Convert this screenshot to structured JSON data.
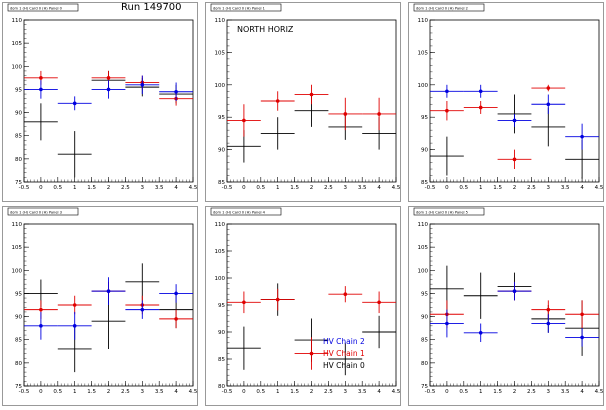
{
  "run_label": "Run 149700",
  "series_colors": {
    "black": "#000000",
    "red": "#e00000",
    "blue": "#0000e0"
  },
  "chart_data": [
    {
      "type": "scatter",
      "panel_title": "dom 1 (H) Card 0 (H) Panel 0",
      "xlim": [
        -0.5,
        4.5
      ],
      "ylim": [
        75,
        110
      ],
      "xticks": [
        "-0.5",
        "0",
        "0.5",
        "1",
        "1.5",
        "2",
        "2.5",
        "3",
        "3.5",
        "4",
        "4.5"
      ],
      "yticks": [
        "75",
        "80",
        "85",
        "90",
        "95",
        "100",
        "105",
        "110"
      ],
      "overlay_text": "",
      "legend": [],
      "series": [
        {
          "color": "black",
          "x": [
            0,
            1,
            2,
            3,
            4
          ],
          "y": [
            88,
            81,
            97,
            95.5,
            94
          ],
          "ex": [
            0.5,
            0.5,
            0.5,
            0.5,
            0.5
          ],
          "ey": [
            4,
            5,
            2,
            2,
            2
          ]
        },
        {
          "color": "red",
          "x": [
            0,
            2,
            3,
            4
          ],
          "y": [
            97.5,
            97.5,
            96.5,
            93
          ],
          "ex": [
            0.5,
            0.5,
            0.5,
            0.5
          ],
          "ey": [
            1.5,
            1.5,
            1.5,
            1.5
          ]
        },
        {
          "color": "blue",
          "x": [
            0,
            1,
            2,
            3,
            4
          ],
          "y": [
            95,
            92,
            95,
            96,
            94.5
          ],
          "ex": [
            0.5,
            0.5,
            0.5,
            0.5,
            0.5
          ],
          "ey": [
            2,
            1.5,
            2,
            2,
            2
          ]
        }
      ]
    },
    {
      "type": "scatter",
      "panel_title": "dom 1 (H) Card 0 (H) Panel 1",
      "xlim": [
        -0.5,
        4.5
      ],
      "ylim": [
        85,
        110
      ],
      "xticks": [
        "-0.5",
        "0",
        "0.5",
        "1",
        "1.5",
        "2",
        "2.5",
        "3",
        "3.5",
        "4",
        "4.5"
      ],
      "yticks": [
        "85",
        "90",
        "95",
        "100",
        "105",
        "110"
      ],
      "overlay_text": "NORTH HORIZ",
      "legend": [],
      "series": [
        {
          "color": "black",
          "x": [
            0,
            1,
            2,
            3,
            4
          ],
          "y": [
            90.5,
            92.5,
            96,
            93.5,
            92.5
          ],
          "ex": [
            0.5,
            0.5,
            0.5,
            0.5,
            0.5
          ],
          "ey": [
            2.5,
            2.5,
            2.5,
            2,
            2.5
          ]
        },
        {
          "color": "red",
          "x": [
            0,
            1,
            2,
            3,
            4
          ],
          "y": [
            94.5,
            97.5,
            98.5,
            95.5,
            95.5
          ],
          "ex": [
            0.5,
            0.5,
            0.5,
            0.5,
            0.5
          ],
          "ey": [
            2.5,
            1.5,
            1.5,
            2.5,
            2.5
          ]
        }
      ]
    },
    {
      "type": "scatter",
      "panel_title": "dom 1 (H) Card 0 (H) Panel 2",
      "xlim": [
        -0.5,
        4.5
      ],
      "ylim": [
        85,
        110
      ],
      "xticks": [
        "-0.5",
        "0",
        "0.5",
        "1",
        "1.5",
        "2",
        "2.5",
        "3",
        "3.5",
        "4",
        "4.5"
      ],
      "yticks": [
        "85",
        "90",
        "95",
        "100",
        "105",
        "110"
      ],
      "overlay_text": "",
      "legend": [],
      "series": [
        {
          "color": "black",
          "x": [
            0,
            2,
            3,
            4
          ],
          "y": [
            89,
            95.5,
            93.5,
            88.5
          ],
          "ex": [
            0.5,
            0.5,
            0.5,
            0.5
          ],
          "ey": [
            3,
            3,
            3,
            3
          ]
        },
        {
          "color": "red",
          "x": [
            0,
            1,
            2,
            3
          ],
          "y": [
            96,
            96.5,
            88.5,
            99.5
          ],
          "ex": [
            0.5,
            0.5,
            0.5,
            0.5
          ],
          "ey": [
            1.5,
            1,
            1.5,
            0.5
          ]
        },
        {
          "color": "blue",
          "x": [
            0,
            1,
            2,
            3,
            4
          ],
          "y": [
            99,
            99,
            94.5,
            97,
            92
          ],
          "ex": [
            0.5,
            0.5,
            0.5,
            0.5,
            0.5
          ],
          "ey": [
            1,
            1,
            1,
            1.5,
            2
          ]
        }
      ]
    },
    {
      "type": "scatter",
      "panel_title": "dom 1 (H) Card 0 (H) Panel 3",
      "xlim": [
        -0.5,
        4.5
      ],
      "ylim": [
        75,
        110
      ],
      "xticks": [
        "-0.5",
        "0",
        "0.5",
        "1",
        "1.5",
        "2",
        "2.5",
        "3",
        "3.5",
        "4",
        "4.5"
      ],
      "yticks": [
        "75",
        "80",
        "85",
        "90",
        "95",
        "100",
        "105",
        "110"
      ],
      "overlay_text": "",
      "legend": [],
      "series": [
        {
          "color": "black",
          "x": [
            0,
            1,
            2,
            3,
            4
          ],
          "y": [
            95,
            83,
            89,
            97.5,
            91.5
          ],
          "ex": [
            0.5,
            0.5,
            0.5,
            0.5,
            0.5
          ],
          "ey": [
            3,
            5,
            6,
            4,
            4
          ]
        },
        {
          "color": "red",
          "x": [
            0,
            1,
            2,
            3,
            4
          ],
          "y": [
            91.5,
            92.5,
            95.5,
            92.5,
            89.5
          ],
          "ex": [
            0.5,
            0.5,
            0.5,
            0.5,
            0.5
          ],
          "ey": [
            2,
            2,
            2,
            2,
            2
          ]
        },
        {
          "color": "blue",
          "x": [
            0,
            1,
            2,
            3,
            4
          ],
          "y": [
            88,
            88,
            95.5,
            91.5,
            95
          ],
          "ex": [
            0.5,
            0.5,
            0.5,
            0.5,
            0.5
          ],
          "ey": [
            3,
            3,
            3,
            2,
            2
          ]
        }
      ]
    },
    {
      "type": "scatter",
      "panel_title": "dom 1 (H) Card 0 (H) Panel 4",
      "xlim": [
        -0.5,
        4.5
      ],
      "ylim": [
        80,
        110
      ],
      "xticks": [
        "-0.5",
        "0",
        "0.5",
        "1",
        "1.5",
        "2",
        "2.5",
        "3",
        "3.5",
        "4",
        "4.5"
      ],
      "yticks": [
        "80",
        "85",
        "90",
        "95",
        "100",
        "105",
        "110"
      ],
      "overlay_text": "",
      "legend": [
        {
          "label": "HV Chain 2",
          "color": "blue"
        },
        {
          "label": "HV Chain 1",
          "color": "red"
        },
        {
          "label": "HV Chain 0",
          "color": "black"
        }
      ],
      "series": [
        {
          "color": "black",
          "x": [
            0,
            1,
            2,
            3,
            4
          ],
          "y": [
            87,
            96,
            88.5,
            85,
            90
          ],
          "ex": [
            0.5,
            0.5,
            0.5,
            0.5,
            0.5
          ],
          "ey": [
            4,
            3,
            4,
            3,
            3
          ]
        },
        {
          "color": "red",
          "x": [
            0,
            1,
            2,
            3,
            4
          ],
          "y": [
            95.5,
            96,
            86,
            97,
            95.5
          ],
          "ex": [
            0.5,
            0.5,
            0.5,
            0.5,
            0.5
          ],
          "ey": [
            2,
            2,
            3,
            1.5,
            2
          ]
        }
      ]
    },
    {
      "type": "scatter",
      "panel_title": "dom 1 (H) Card 0 (H) Panel 5",
      "xlim": [
        -0.5,
        4.5
      ],
      "ylim": [
        75,
        110
      ],
      "xticks": [
        "-0.5",
        "0",
        "0.5",
        "1",
        "1.5",
        "2",
        "2.5",
        "3",
        "3.5",
        "4",
        "4.5"
      ],
      "yticks": [
        "75",
        "80",
        "85",
        "90",
        "95",
        "100",
        "105",
        "110"
      ],
      "overlay_text": "",
      "legend": [],
      "series": [
        {
          "color": "black",
          "x": [
            0,
            1,
            2,
            3,
            4
          ],
          "y": [
            96,
            94.5,
            96.5,
            89.5,
            87.5
          ],
          "ex": [
            0.5,
            0.5,
            0.5,
            0.5,
            0.5
          ],
          "ey": [
            5,
            5,
            3,
            3,
            6
          ]
        },
        {
          "color": "red",
          "x": [
            0,
            2,
            3,
            4
          ],
          "y": [
            90.5,
            95.5,
            91.5,
            90.5
          ],
          "ex": [
            0.5,
            0.5,
            0.5,
            0.5
          ],
          "ey": [
            3,
            2,
            2,
            3
          ]
        },
        {
          "color": "blue",
          "x": [
            0,
            1,
            2,
            3,
            4
          ],
          "y": [
            88.5,
            86.5,
            95.5,
            88.5,
            85.5
          ],
          "ex": [
            0.5,
            0.5,
            0.5,
            0.5,
            0.5
          ],
          "ey": [
            3,
            2,
            2,
            2,
            2
          ]
        }
      ]
    }
  ]
}
